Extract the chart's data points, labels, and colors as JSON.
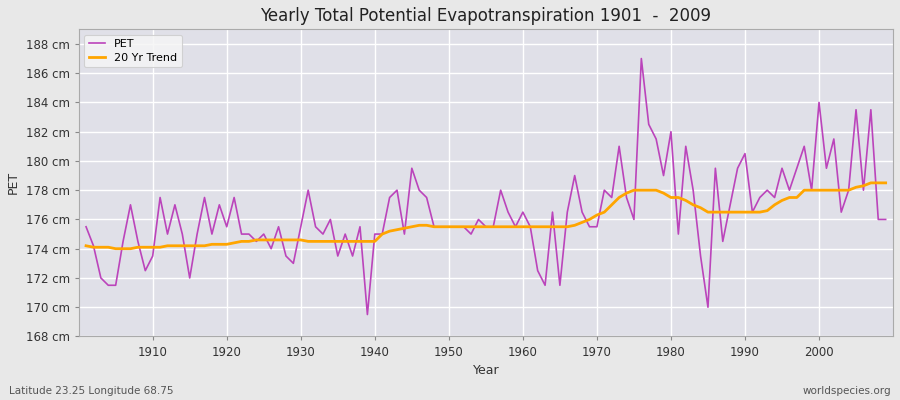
{
  "title": "Yearly Total Potential Evapotranspiration 1901  -  2009",
  "xlabel": "Year",
  "ylabel": "PET",
  "subtitle_left": "Latitude 23.25 Longitude 68.75",
  "subtitle_right": "worldspecies.org",
  "pet_color": "#bb44bb",
  "trend_color": "#ffa500",
  "fig_bg": "#e8e8e8",
  "ax_bg": "#e0e0e8",
  "grid_color": "#ffffff",
  "ylim": [
    168,
    189
  ],
  "xlim": [
    1900,
    2010
  ],
  "ytick_vals": [
    168,
    170,
    172,
    174,
    176,
    178,
    180,
    182,
    184,
    186,
    188
  ],
  "xtick_vals": [
    1910,
    1920,
    1930,
    1940,
    1950,
    1960,
    1970,
    1980,
    1990,
    2000
  ],
  "years": [
    1901,
    1902,
    1903,
    1904,
    1905,
    1906,
    1907,
    1908,
    1909,
    1910,
    1911,
    1912,
    1913,
    1914,
    1915,
    1916,
    1917,
    1918,
    1919,
    1920,
    1921,
    1922,
    1923,
    1924,
    1925,
    1926,
    1927,
    1928,
    1929,
    1930,
    1931,
    1932,
    1933,
    1934,
    1935,
    1936,
    1937,
    1938,
    1939,
    1940,
    1941,
    1942,
    1943,
    1944,
    1945,
    1946,
    1947,
    1948,
    1949,
    1950,
    1951,
    1952,
    1953,
    1954,
    1955,
    1956,
    1957,
    1958,
    1959,
    1960,
    1961,
    1962,
    1963,
    1964,
    1965,
    1966,
    1967,
    1968,
    1969,
    1970,
    1971,
    1972,
    1973,
    1974,
    1975,
    1976,
    1977,
    1978,
    1979,
    1980,
    1981,
    1982,
    1983,
    1984,
    1985,
    1986,
    1987,
    1988,
    1989,
    1990,
    1991,
    1992,
    1993,
    1994,
    1995,
    1996,
    1997,
    1998,
    1999,
    2000,
    2001,
    2002,
    2003,
    2004,
    2005,
    2006,
    2007,
    2008,
    2009
  ],
  "pet": [
    175.5,
    174.2,
    172.0,
    171.5,
    171.5,
    174.5,
    177.0,
    174.5,
    172.5,
    173.5,
    177.5,
    175.0,
    177.0,
    175.0,
    172.0,
    175.0,
    177.5,
    175.0,
    177.0,
    175.5,
    177.5,
    175.0,
    175.0,
    174.5,
    175.0,
    174.0,
    175.5,
    173.5,
    173.0,
    175.5,
    178.0,
    175.5,
    175.0,
    176.0,
    173.5,
    175.0,
    173.5,
    175.5,
    169.5,
    175.0,
    175.0,
    177.5,
    178.0,
    175.0,
    179.5,
    178.0,
    177.5,
    175.5,
    175.5,
    175.5,
    175.5,
    175.5,
    175.0,
    176.0,
    175.5,
    175.5,
    178.0,
    176.5,
    175.5,
    176.5,
    175.5,
    172.5,
    171.5,
    176.5,
    171.5,
    176.5,
    179.0,
    176.5,
    175.5,
    175.5,
    178.0,
    177.5,
    181.0,
    177.5,
    176.0,
    187.0,
    182.5,
    181.5,
    179.0,
    182.0,
    175.0,
    181.0,
    178.0,
    173.5,
    170.0,
    179.5,
    174.5,
    177.0,
    179.5,
    180.5,
    176.5,
    177.5,
    178.0,
    177.5,
    179.5,
    178.0,
    179.5,
    181.0,
    178.0,
    184.0,
    179.5,
    181.5,
    176.5,
    178.0,
    183.5,
    178.0,
    183.5,
    176.0,
    176.0
  ],
  "trend": [
    174.2,
    174.1,
    174.1,
    174.1,
    174.0,
    174.0,
    174.0,
    174.1,
    174.1,
    174.1,
    174.1,
    174.2,
    174.2,
    174.2,
    174.2,
    174.2,
    174.2,
    174.3,
    174.3,
    174.3,
    174.4,
    174.5,
    174.5,
    174.6,
    174.6,
    174.6,
    174.6,
    174.6,
    174.6,
    174.6,
    174.5,
    174.5,
    174.5,
    174.5,
    174.5,
    174.5,
    174.5,
    174.5,
    174.5,
    174.5,
    175.0,
    175.2,
    175.3,
    175.4,
    175.5,
    175.6,
    175.6,
    175.5,
    175.5,
    175.5,
    175.5,
    175.5,
    175.5,
    175.5,
    175.5,
    175.5,
    175.5,
    175.5,
    175.5,
    175.5,
    175.5,
    175.5,
    175.5,
    175.5,
    175.5,
    175.5,
    175.6,
    175.8,
    176.0,
    176.3,
    176.5,
    177.0,
    177.5,
    177.8,
    178.0,
    178.0,
    178.0,
    178.0,
    177.8,
    177.5,
    177.5,
    177.3,
    177.0,
    176.8,
    176.5,
    176.5,
    176.5,
    176.5,
    176.5,
    176.5,
    176.5,
    176.5,
    176.6,
    177.0,
    177.3,
    177.5,
    177.5,
    178.0,
    178.0,
    178.0,
    178.0,
    178.0,
    178.0,
    178.0,
    178.2,
    178.3,
    178.5,
    178.5,
    178.5
  ]
}
